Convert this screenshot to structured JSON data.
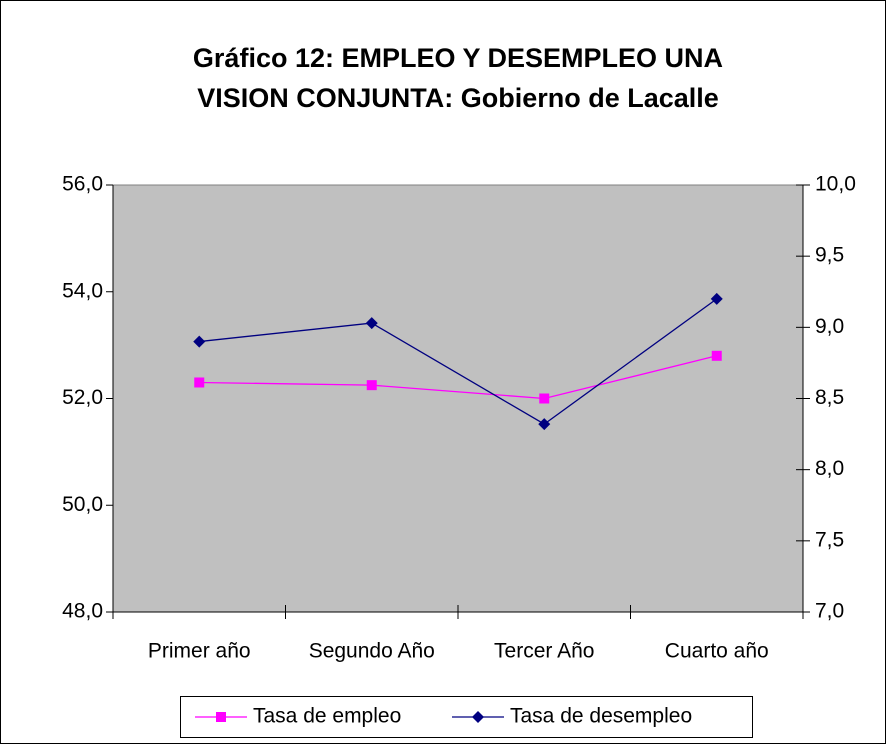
{
  "chart_data": {
    "type": "line",
    "title": [
      "Gráfico 12: EMPLEO Y DESEMPLEO UNA",
      "VISION CONJUNTA: Gobierno de Lacalle"
    ],
    "categories": [
      "Primer año",
      "Segundo Año",
      "Tercer Año",
      "Cuarto año"
    ],
    "series": [
      {
        "name": "Tasa de empleo",
        "color": "#ff00ff",
        "marker": "square",
        "values": [
          52.3,
          52.25,
          52.0,
          52.8
        ]
      },
      {
        "name": "Tasa de desempleo",
        "color": "#000080",
        "marker": "diamond",
        "axis": "y2",
        "values": [
          8.9,
          9.03,
          8.32,
          9.2
        ]
      }
    ],
    "ylim": [
      48,
      56
    ],
    "yticks": [
      {
        "value": 48,
        "label": "48,0"
      },
      {
        "value": 50,
        "label": "50,0"
      },
      {
        "value": 52,
        "label": "52,0"
      },
      {
        "value": 54,
        "label": "54,0"
      },
      {
        "value": 56,
        "label": "56,0"
      }
    ],
    "y2lim": [
      7,
      10
    ],
    "y2ticks": [
      {
        "value": 7,
        "label": "7,0"
      },
      {
        "value": 7.5,
        "label": "7,5"
      },
      {
        "value": 8,
        "label": "8,0"
      },
      {
        "value": 8.5,
        "label": "8,5"
      },
      {
        "value": 9,
        "label": "9,0"
      },
      {
        "value": 9.5,
        "label": "9,5"
      },
      {
        "value": 10,
        "label": "10,0"
      }
    ],
    "plot_background": "#c0c0c0",
    "legend": "bottom"
  }
}
